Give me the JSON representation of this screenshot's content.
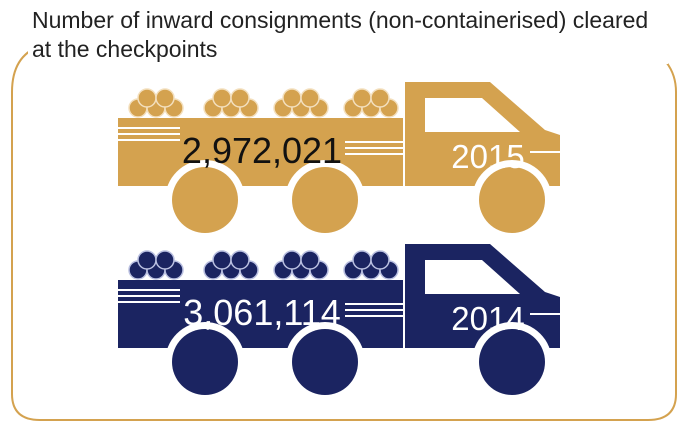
{
  "title": "Number of inward consignments (non-containerised) cleared at the checkpoints",
  "items": [
    {
      "value": "2,972,021",
      "year": "2015"
    },
    {
      "value": "3,061,114",
      "year": "2014"
    }
  ]
}
